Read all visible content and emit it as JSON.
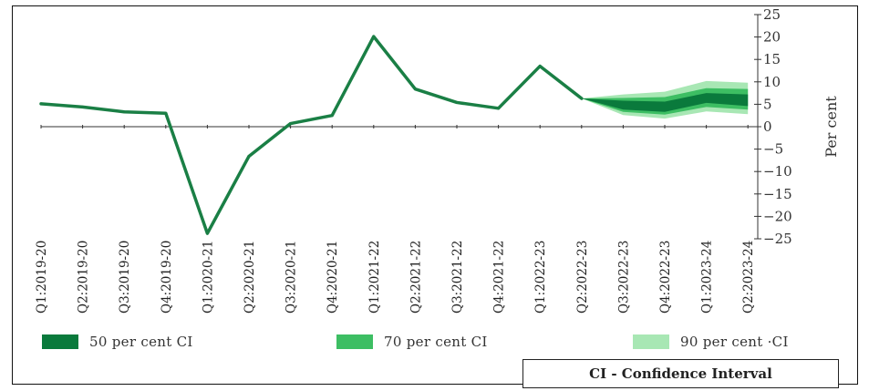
{
  "chart_data": {
    "type": "line",
    "categories": [
      "Q1:2019-20",
      "Q2:2019-20",
      "Q3:2019-20",
      "Q4:2019-20",
      "Q1:2020-21",
      "Q2:2020-21",
      "Q3:2020-21",
      "Q4:2020-21",
      "Q1:2021-22",
      "Q2:2021-22",
      "Q3:2021-22",
      "Q4:2021-22",
      "Q1:2022-23",
      "Q2:2022-23",
      "Q3:2022-23",
      "Q4:2022-23",
      "Q1:2023-24",
      "Q2:2023-24"
    ],
    "series": [
      {
        "values": [
          5.1,
          4.4,
          3.3,
          3.0,
          -23.8,
          -6.6,
          0.7,
          2.5,
          20.1,
          8.4,
          5.4,
          4.1,
          13.5,
          6.3,
          null,
          null,
          null,
          null
        ]
      }
    ],
    "fan_chart": {
      "x": [
        "Q2:2022-23",
        "Q3:2022-23",
        "Q4:2022-23",
        "Q1:2023-24",
        "Q2:2023-24"
      ],
      "ci50": {
        "low": [
          6.3,
          3.8,
          3.3,
          5.3,
          4.6
        ],
        "high": [
          6.3,
          5.8,
          5.6,
          7.5,
          7.2
        ]
      },
      "ci70": {
        "low": [
          6.3,
          3.3,
          2.7,
          4.4,
          3.8
        ],
        "high": [
          6.3,
          6.4,
          6.6,
          8.6,
          8.4
        ]
      },
      "ci90": {
        "low": [
          6.3,
          2.6,
          1.8,
          3.4,
          2.8
        ],
        "high": [
          6.3,
          7.2,
          7.8,
          10.2,
          9.8
        ]
      }
    },
    "title": "",
    "xlabel": "",
    "ylabel": "Per cent",
    "ylim": [
      -25,
      25
    ],
    "yticks": [
      25,
      20,
      15,
      10,
      5,
      0,
      -5,
      -10,
      -15,
      -20,
      -25
    ],
    "y_axis_side": "right",
    "grid": false,
    "legend": [
      {
        "label": "50 per cent CI",
        "color": "#0a7a3c"
      },
      {
        "label": "70 per cent CI",
        "color": "#3dbe63"
      },
      {
        "label": "90 per cent ·CI",
        "color": "#a8e7b4"
      }
    ],
    "legend_position": "bottom",
    "note": "CI - Confidence Interval",
    "colors": {
      "line": "#1a7f45",
      "ci50": "#0a7a3c",
      "ci70": "#3dbe63",
      "ci90": "#a8e7b4",
      "axis": "#333333"
    }
  }
}
